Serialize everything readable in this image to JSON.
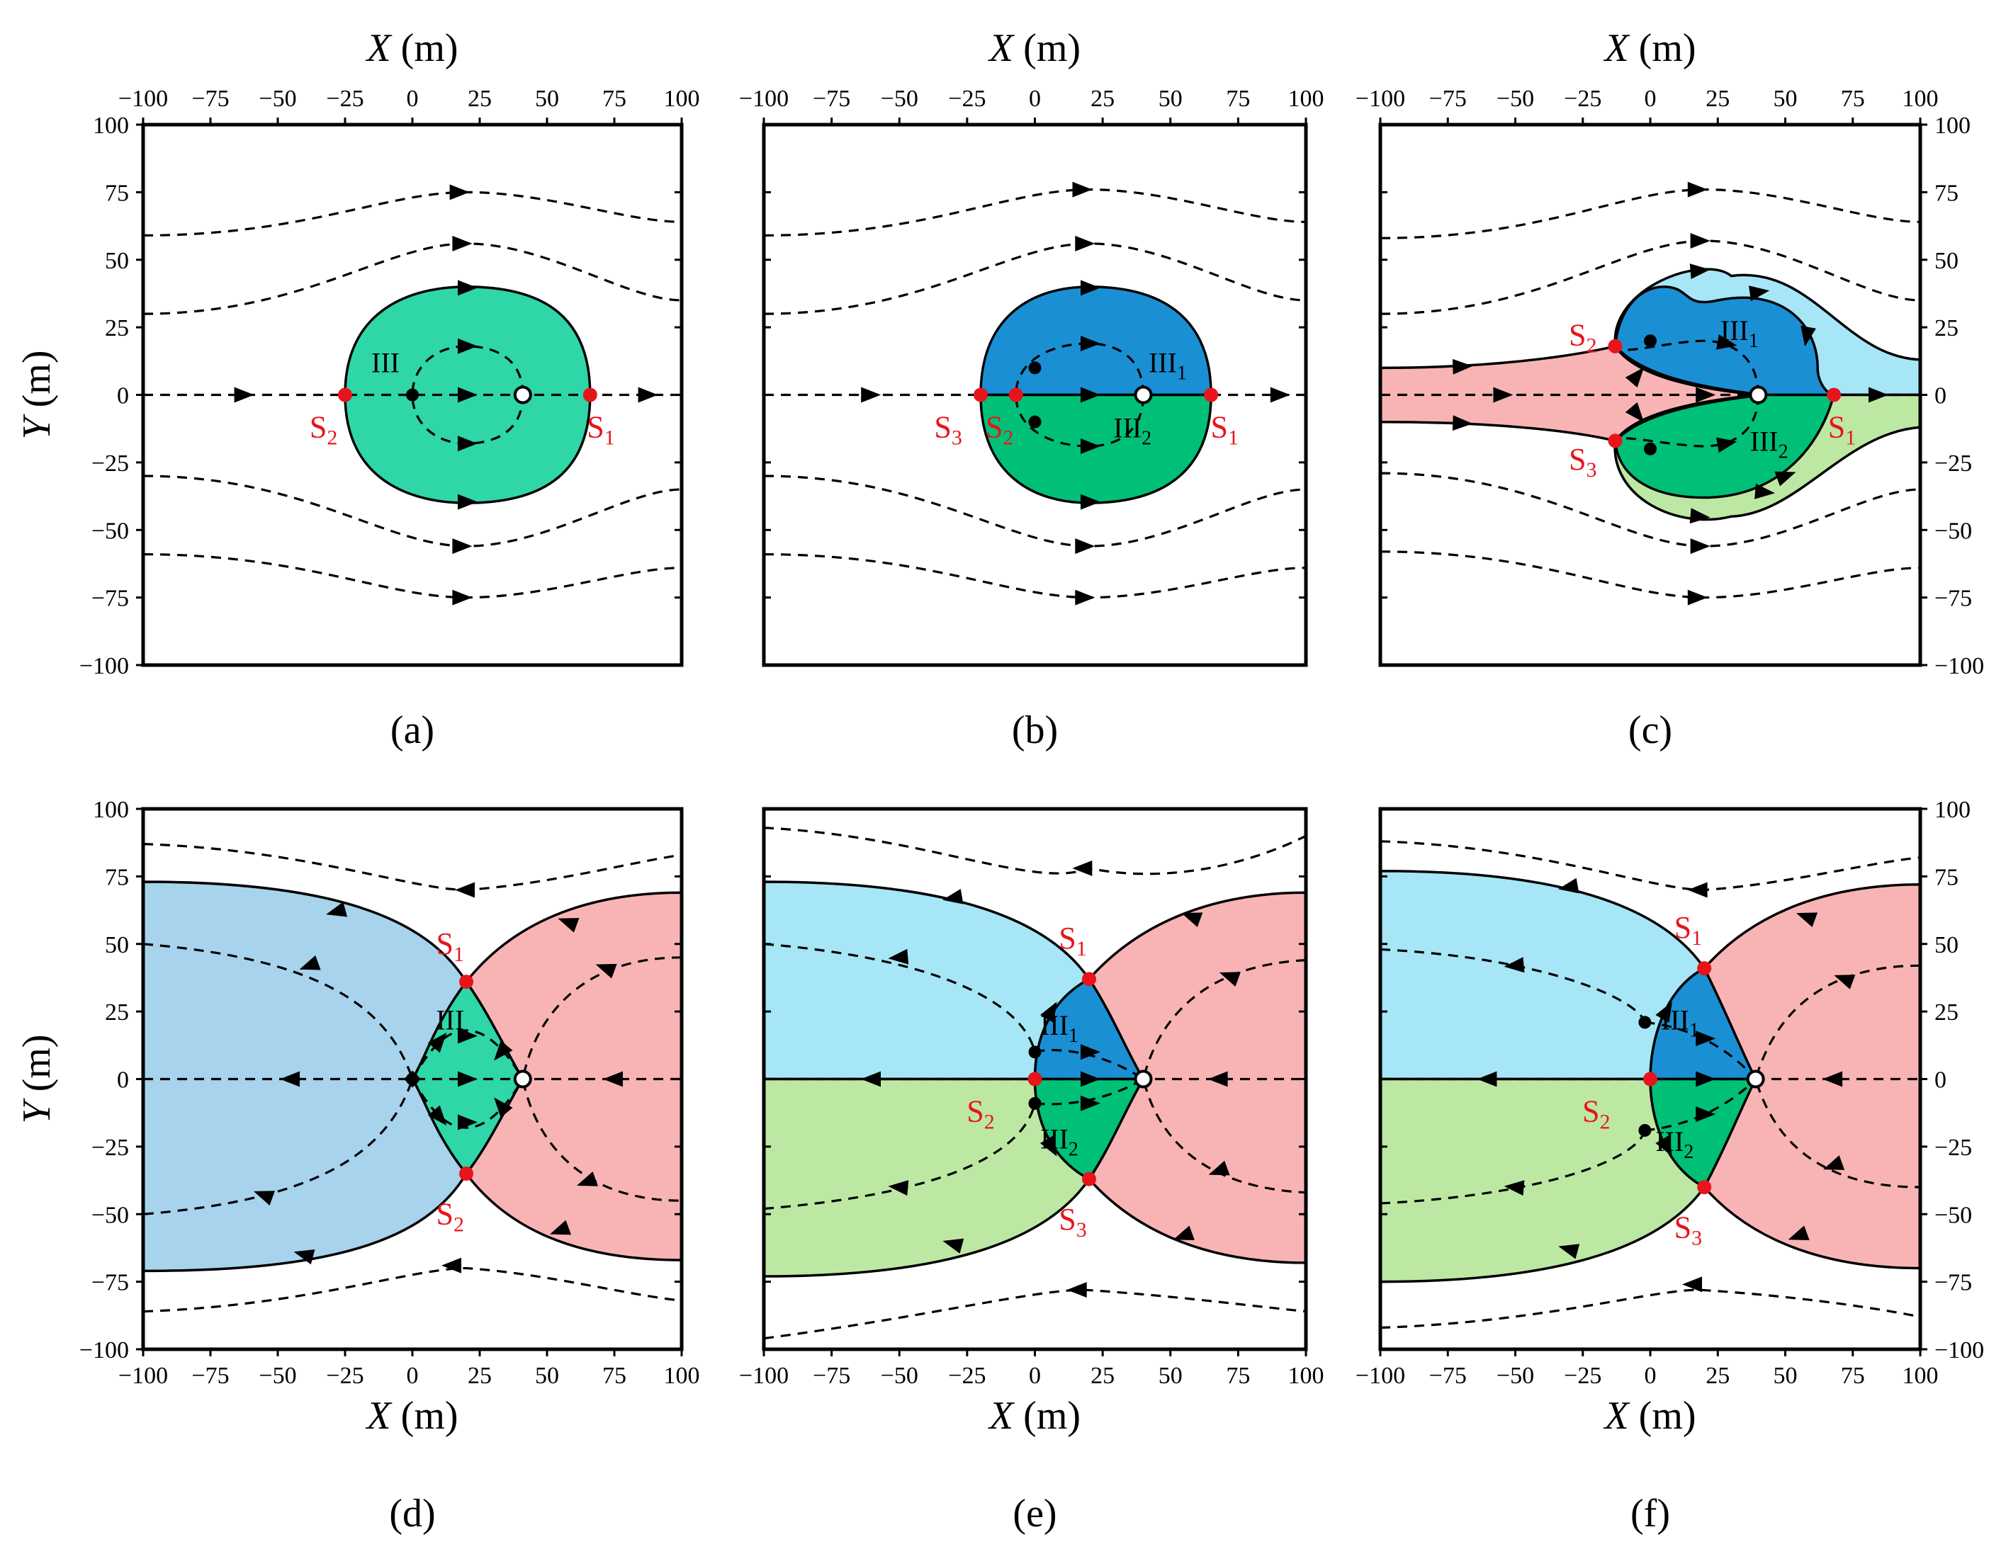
{
  "axes": {
    "x_title_italic": "X",
    "x_title_unit": " (m)",
    "y_title_italic": "Y",
    "y_title_unit": " (m)",
    "xlim": [
      -100,
      100
    ],
    "ylim": [
      -100,
      100
    ],
    "ticks": [
      -100,
      -75,
      -50,
      -25,
      0,
      25,
      50,
      75,
      100
    ]
  },
  "colors": {
    "region_III": "#2fd6a8",
    "region_III1": "#1b8fd4",
    "region_III2": "#00c078",
    "left_blue_d": "#a8d3ec",
    "light_cyan": "#a6e6f7",
    "light_green": "#bde8a4",
    "pink": "#f8b4b4",
    "saddle": "#e8141b"
  },
  "panels": [
    {
      "id": "a",
      "label": "(a)",
      "region_labels": [
        {
          "text": "III",
          "sub": "",
          "x": -10,
          "y": 12
        }
      ],
      "centers": [
        {
          "x": 0,
          "y": 0
        }
      ],
      "nodes": [
        {
          "x": 41,
          "y": 0
        }
      ],
      "saddles": [
        {
          "name": "S",
          "sub": "2",
          "x": -25,
          "y": 0,
          "lx": -33,
          "ly": -12
        },
        {
          "name": "S",
          "sub": "1",
          "x": 66,
          "y": 0,
          "lx": 70,
          "ly": -12
        }
      ]
    },
    {
      "id": "b",
      "label": "(b)",
      "region_labels": [
        {
          "text": "III",
          "sub": "1",
          "x": 49,
          "y": 12
        },
        {
          "text": "III",
          "sub": "2",
          "x": 36,
          "y": -12
        }
      ],
      "centers": [
        {
          "x": 0,
          "y": 10
        },
        {
          "x": 0,
          "y": -10
        }
      ],
      "nodes": [
        {
          "x": 40,
          "y": 0
        }
      ],
      "saddles": [
        {
          "name": "S",
          "sub": "3",
          "x": -20,
          "y": 0,
          "lx": -32,
          "ly": -12
        },
        {
          "name": "S",
          "sub": "2",
          "x": -7,
          "y": 0,
          "lx": -13,
          "ly": -12
        },
        {
          "name": "S",
          "sub": "1",
          "x": 65,
          "y": 0,
          "lx": 70,
          "ly": -12
        }
      ]
    },
    {
      "id": "c",
      "label": "(c)",
      "region_labels": [
        {
          "text": "III",
          "sub": "1",
          "x": 33,
          "y": 24
        },
        {
          "text": "III",
          "sub": "2",
          "x": 44,
          "y": -17
        }
      ],
      "centers": [
        {
          "x": 0,
          "y": 20
        },
        {
          "x": 0,
          "y": -20
        }
      ],
      "nodes": [
        {
          "x": 40,
          "y": 0
        }
      ],
      "saddles": [
        {
          "name": "S",
          "sub": "2",
          "x": -13,
          "y": 18,
          "lx": -25,
          "ly": 22
        },
        {
          "name": "S",
          "sub": "3",
          "x": -13,
          "y": -17,
          "lx": -25,
          "ly": -24
        },
        {
          "name": "S",
          "sub": "1",
          "x": 68,
          "y": 0,
          "lx": 71,
          "ly": -12
        }
      ]
    },
    {
      "id": "d",
      "label": "(d)",
      "region_labels": [
        {
          "text": "III",
          "sub": "",
          "x": 14,
          "y": 22
        }
      ],
      "centers": [
        {
          "x": 0,
          "y": 0
        }
      ],
      "nodes": [
        {
          "x": 41,
          "y": 0
        }
      ],
      "saddles": [
        {
          "name": "S",
          "sub": "1",
          "x": 20,
          "y": 36,
          "lx": 14,
          "ly": 50
        },
        {
          "name": "S",
          "sub": "2",
          "x": 20,
          "y": -35,
          "lx": 14,
          "ly": -50
        }
      ]
    },
    {
      "id": "e",
      "label": "(e)",
      "region_labels": [
        {
          "text": "III",
          "sub": "1",
          "x": 9,
          "y": 20
        },
        {
          "text": "III",
          "sub": "2",
          "x": 9,
          "y": -22
        }
      ],
      "centers": [
        {
          "x": 0,
          "y": 10
        },
        {
          "x": 0,
          "y": -9
        }
      ],
      "nodes": [
        {
          "x": 40,
          "y": 0
        }
      ],
      "saddles": [
        {
          "name": "S",
          "sub": "1",
          "x": 20,
          "y": 37,
          "lx": 14,
          "ly": 52
        },
        {
          "name": "S",
          "sub": "2",
          "x": 0,
          "y": 0,
          "lx": -20,
          "ly": -12
        },
        {
          "name": "S",
          "sub": "3",
          "x": 20,
          "y": -37,
          "lx": 14,
          "ly": -52
        }
      ]
    },
    {
      "id": "f",
      "label": "(f)",
      "region_labels": [
        {
          "text": "III",
          "sub": "1",
          "x": 11,
          "y": 22
        },
        {
          "text": "III",
          "sub": "2",
          "x": 9,
          "y": -23
        }
      ],
      "centers": [
        {
          "x": -2,
          "y": 21
        },
        {
          "x": -2,
          "y": -19
        }
      ],
      "nodes": [
        {
          "x": 39,
          "y": 0
        }
      ],
      "saddles": [
        {
          "name": "S",
          "sub": "1",
          "x": 20,
          "y": 41,
          "lx": 14,
          "ly": 56
        },
        {
          "name": "S",
          "sub": "2",
          "x": 0,
          "y": 0,
          "lx": -20,
          "ly": -12
        },
        {
          "name": "S",
          "sub": "3",
          "x": 20,
          "y": -40,
          "lx": 14,
          "ly": -55
        }
      ]
    }
  ]
}
